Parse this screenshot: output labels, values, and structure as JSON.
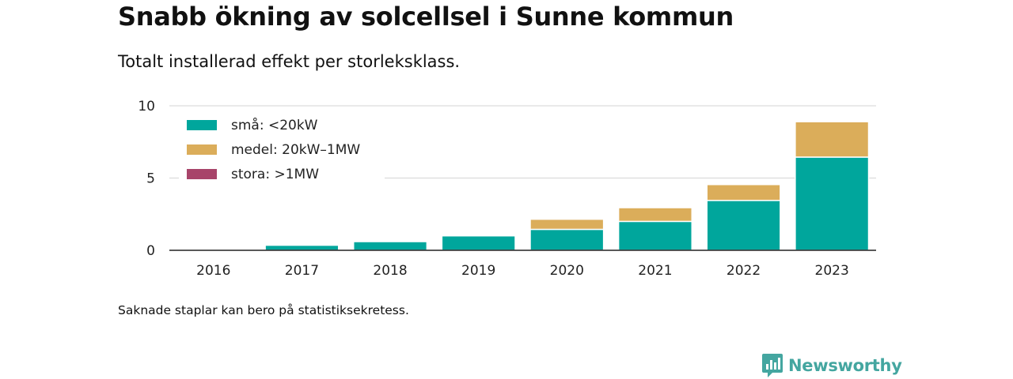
{
  "title": "Snabb ökning av solcellsel i Sunne kommun",
  "subtitle": "Totalt installerad effekt per storleksklass.",
  "footnote": "Saknade staplar kan bero på statistiksekretess.",
  "brand": {
    "name": "Newsworthy",
    "icon": "newsworthy-chart-icon",
    "color": "#44a6a0"
  },
  "chart_data": {
    "type": "bar",
    "stacked": true,
    "categories": [
      "2016",
      "2017",
      "2018",
      "2019",
      "2020",
      "2021",
      "2022",
      "2023"
    ],
    "series": [
      {
        "name": "små: <20kW",
        "color": "#00a69c",
        "values": [
          0,
          0.35,
          0.6,
          1.0,
          1.45,
          2.0,
          3.45,
          6.45
        ]
      },
      {
        "name": "medel: 20kW–1MW",
        "color": "#dbad5a",
        "values": [
          0,
          0,
          0,
          0,
          0.7,
          0.95,
          1.1,
          2.45
        ]
      },
      {
        "name": "stora: >1MW",
        "color": "#a8446a",
        "values": [
          0,
          0,
          0,
          0,
          0,
          0,
          0,
          0
        ]
      }
    ],
    "yticks": [
      0,
      5,
      10
    ],
    "ylim": [
      0,
      10
    ],
    "grid": true,
    "legend": "top-left"
  }
}
